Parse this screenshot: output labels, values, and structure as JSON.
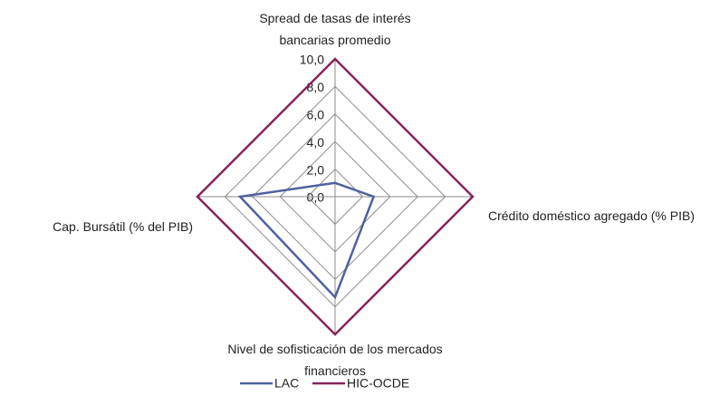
{
  "chart_data": {
    "type": "radar",
    "categories": [
      "Spread de tasas de interés bancarias promedio",
      "Crédito doméstico agregado (% PIB)",
      "Nivel de sofisticación de los mercados financieros",
      "Cap. Bursátil (% del PIB)"
    ],
    "series": [
      {
        "name": "LAC",
        "color": "#5060a0",
        "values": [
          1.0,
          2.8,
          7.3,
          6.9
        ]
      },
      {
        "name": "HIC-OCDE",
        "color": "#86245a",
        "values": [
          10,
          10,
          10,
          10
        ]
      }
    ],
    "ylim": [
      0,
      10
    ],
    "yticks": [
      {
        "value": 0,
        "label": "0,0"
      },
      {
        "value": 2,
        "label": "2,0"
      },
      {
        "value": 4,
        "label": "4,0"
      },
      {
        "value": 6,
        "label": "6,0"
      },
      {
        "value": 8,
        "label": "8,0"
      },
      {
        "value": 10,
        "label": "10,0"
      }
    ],
    "grid": true,
    "legend": "bottom"
  }
}
